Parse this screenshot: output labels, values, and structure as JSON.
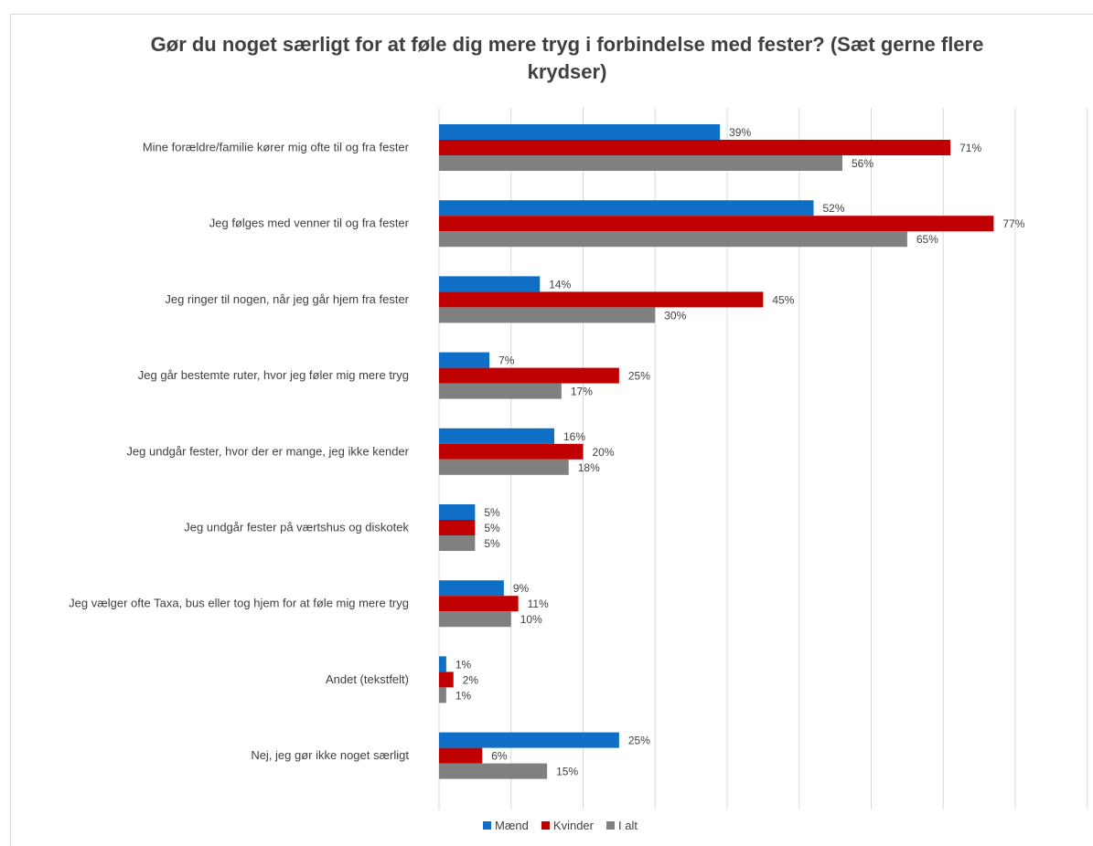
{
  "chart_data": {
    "type": "bar",
    "orientation": "horizontal",
    "title": "Gør du noget særligt for at føle dig mere tryg i forbindelse med fester? (Sæt gerne flere krydser)",
    "categories": [
      "Mine forældre/familie kører mig ofte til og fra fester",
      "Jeg følges med venner til og fra fester",
      "Jeg ringer til nogen, når jeg går hjem fra fester",
      "Jeg går bestemte ruter, hvor jeg føler mig mere tryg",
      "Jeg undgår fester, hvor der er mange, jeg ikke kender",
      "Jeg undgår fester på værtshus og diskotek",
      "Jeg vælger ofte Taxa, bus eller tog hjem for at føle mig mere tryg",
      "Andet (tekstfelt)",
      "Nej, jeg gør ikke noget særligt"
    ],
    "series": [
      {
        "name": "Mænd",
        "color": "#0f6fc6",
        "values": [
          39,
          52,
          14,
          7,
          16,
          5,
          9,
          1,
          25
        ],
        "labels": [
          "39%",
          "52%",
          "14%",
          "7%",
          "16%",
          "5%",
          "9%",
          "1%",
          "25%"
        ]
      },
      {
        "name": "Kvinder",
        "color": "#c00000",
        "values": [
          71,
          77,
          45,
          25,
          20,
          5,
          11,
          2,
          6
        ],
        "labels": [
          "71%",
          "77%",
          "45%",
          "25%",
          "20%",
          "5%",
          "11%",
          "2%",
          "6%"
        ]
      },
      {
        "name": "I alt",
        "color": "#808080",
        "values": [
          56,
          65,
          30,
          17,
          18,
          5,
          10,
          1,
          15
        ],
        "labels": [
          "56%",
          "65%",
          "30%",
          "17%",
          "18%",
          "5%",
          "10%",
          "1%",
          "15%"
        ]
      }
    ],
    "xlim": [
      0,
      90
    ],
    "grid": true,
    "legend_position": "bottom"
  }
}
